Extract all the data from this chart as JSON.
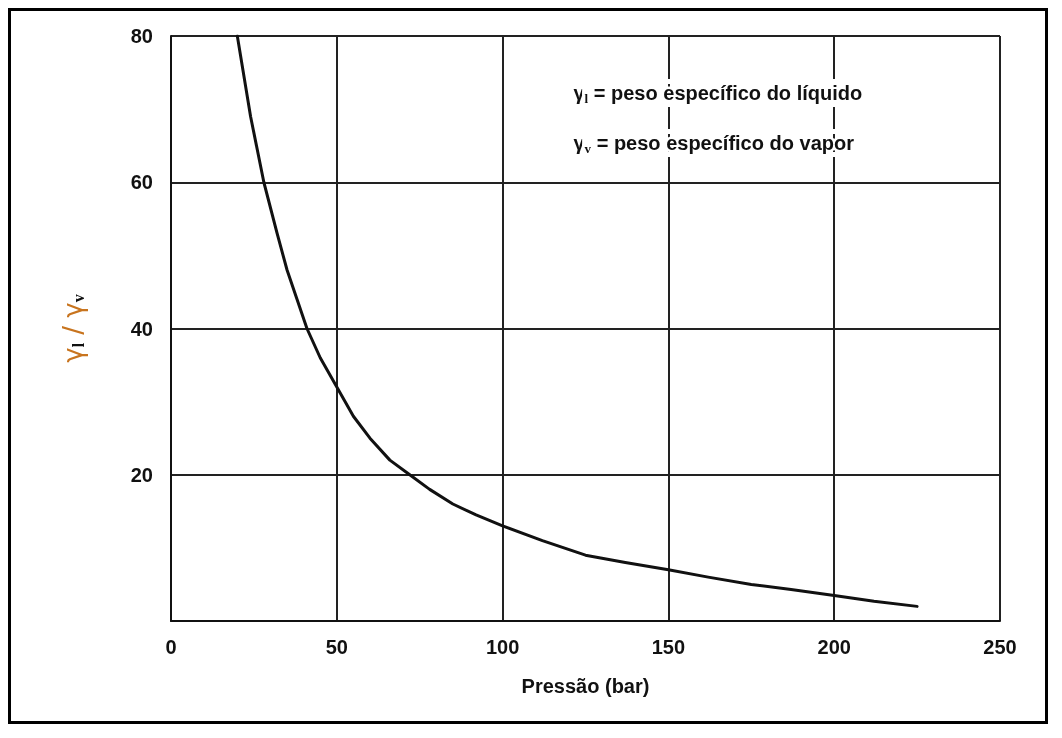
{
  "chart_data": {
    "type": "line",
    "xlabel": "Pressão (bar)",
    "ylabel": "γ$_{l}$ / γ$_{v}$",
    "annotations": [
      "γ$_{l}$ = peso específico do líquido",
      "γ$_{v}$ = peso específico do vapor"
    ],
    "series": [
      {
        "color": "#111111",
        "x": [
          20,
          24,
          28,
          32,
          35,
          38,
          41,
          45,
          50,
          55,
          60,
          66,
          72,
          78,
          85,
          92,
          100,
          112,
          125,
          137,
          150,
          162,
          175,
          187,
          200,
          212,
          225
        ],
        "values": [
          80,
          69,
          60,
          53,
          48,
          44,
          40,
          36,
          32,
          28,
          25,
          22,
          20,
          18,
          16,
          14.5,
          13,
          11,
          9,
          8,
          7,
          6,
          5,
          4.3,
          3.5,
          2.7,
          2
        ]
      }
    ],
    "xlim": [
      0,
      250
    ],
    "xticks": [
      0,
      50,
      100,
      150,
      200,
      250
    ],
    "ylim": [
      0,
      80
    ],
    "yticks": [
      20,
      40,
      60,
      80
    ],
    "grid": true,
    "marker": "none",
    "line_style": "solid"
  }
}
